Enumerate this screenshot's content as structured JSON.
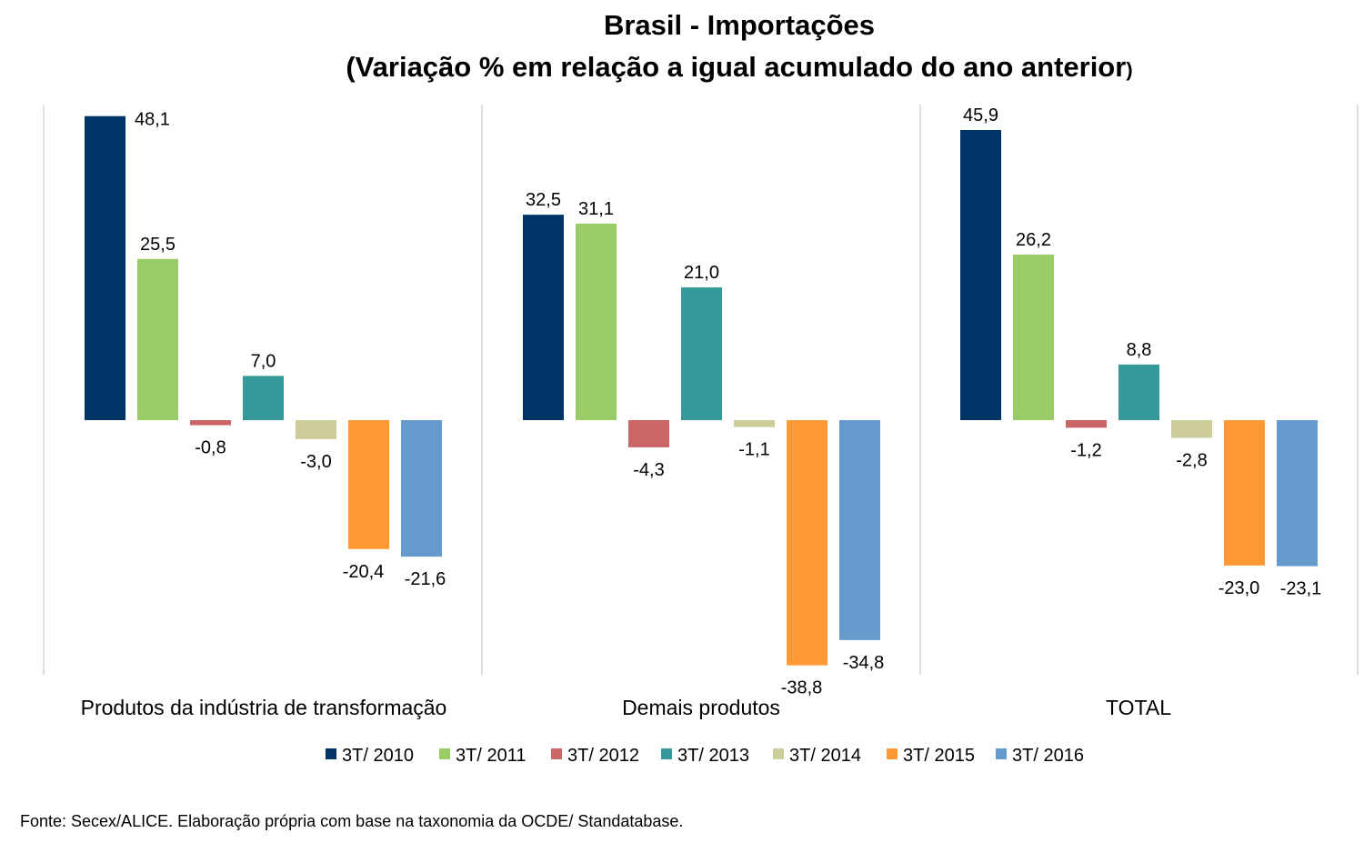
{
  "title": {
    "line1": "Brasil - Importações",
    "line2_main": "(Variação % em relação a igual acumulado do ano anterior",
    "line2_close": ")"
  },
  "source": "Fonte: Secex/ALICE. Elaboração própria com base na taxonomia da OCDE/ Standatabase.",
  "chart_data": {
    "type": "bar",
    "title": "Brasil - Importações (Variação % em relação a igual acumulado do ano anterior)",
    "categories": [
      "Produtos da indústria de transformação",
      "Demais produtos",
      "TOTAL"
    ],
    "series": [
      {
        "name": "3T/ 2010",
        "color": "#003366",
        "values": [
          48.1,
          32.5,
          45.9
        ],
        "labels": [
          "48,1",
          "32,5",
          "45,9"
        ]
      },
      {
        "name": "3T/ 2011",
        "color": "#99CC66",
        "values": [
          25.5,
          31.1,
          26.2
        ],
        "labels": [
          "25,5",
          "31,1",
          "26,2"
        ]
      },
      {
        "name": "3T/ 2012",
        "color": "#CC6666",
        "values": [
          -0.8,
          -4.3,
          -1.2
        ],
        "labels": [
          "-0,8",
          "-4,3",
          "-1,2"
        ]
      },
      {
        "name": "3T/ 2013",
        "color": "#339999",
        "values": [
          7.0,
          21.0,
          8.8
        ],
        "labels": [
          "7,0",
          "21,0",
          "8,8"
        ]
      },
      {
        "name": "3T/ 2014",
        "color": "#CCCC99",
        "values": [
          -3.0,
          -1.1,
          -2.8
        ],
        "labels": [
          "-3,0",
          "-1,1",
          "-2,8"
        ]
      },
      {
        "name": "3T/ 2015",
        "color": "#FF9933",
        "values": [
          -20.4,
          -38.8,
          -23.0
        ],
        "labels": [
          "-20,4",
          "-38,8",
          "-23,0"
        ]
      },
      {
        "name": "3T/ 2016",
        "color": "#6699CC",
        "values": [
          -21.6,
          -34.8,
          -23.1
        ],
        "labels": [
          "-21,6",
          "-34,8",
          "-23,1"
        ]
      }
    ],
    "gridlines": false,
    "legend_position": "bottom"
  }
}
